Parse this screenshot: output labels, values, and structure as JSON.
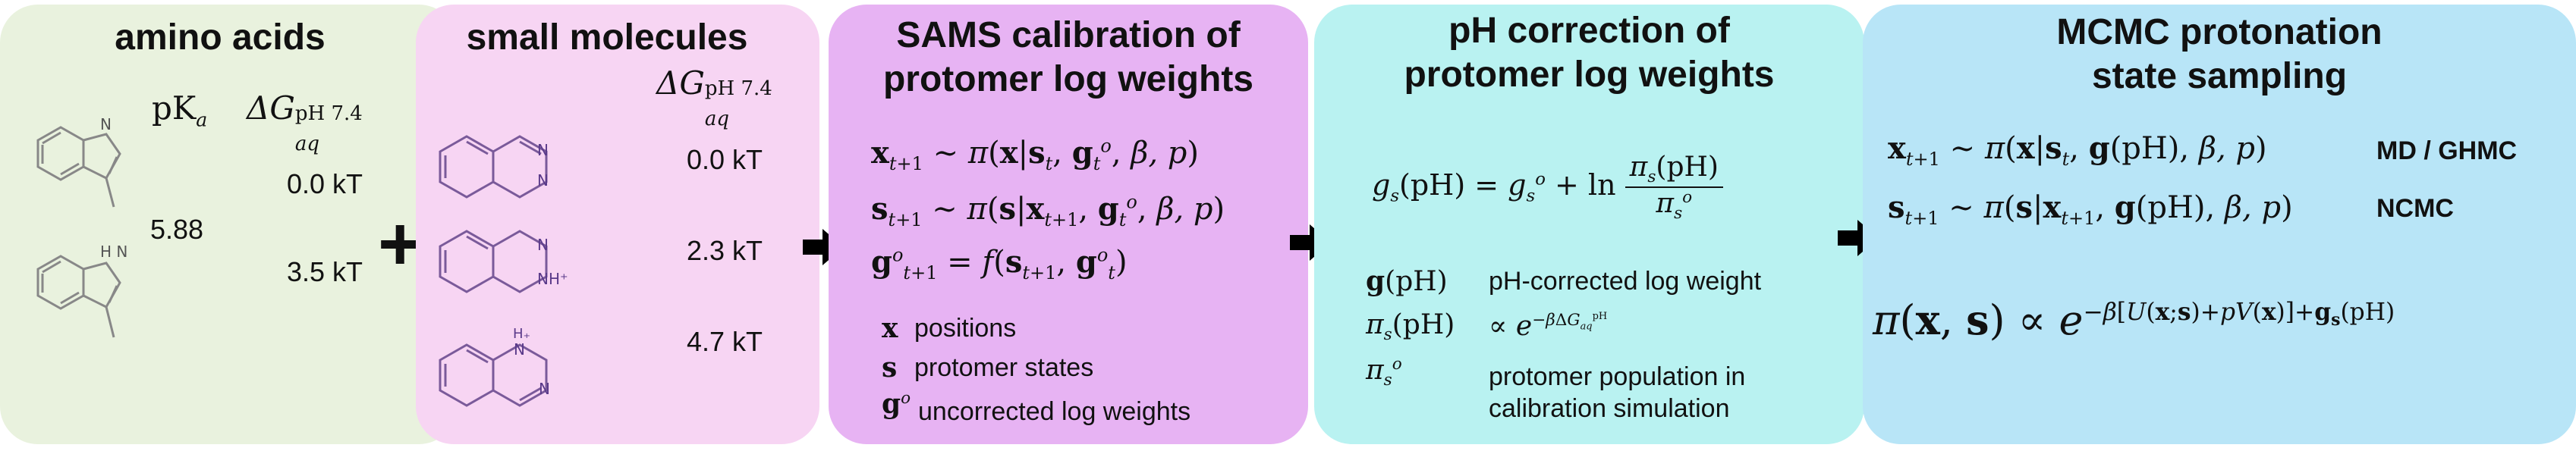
{
  "colors": {
    "amino_bg": "#e9f2de",
    "small_bg": "#f7d5f3",
    "sams_bg": "#e7b3f3",
    "ph_bg": "#b9f2f1",
    "mcmc_bg": "#b8e5f7",
    "molecule_stroke": "#888888"
  },
  "amino_acids": {
    "title": "amino acids",
    "col_pka": "pK",
    "col_pka_sub": "a",
    "col_dg": "ΔG",
    "col_dg_sup": "pH 7.4",
    "col_dg_sub": "aq",
    "pka_value": "5.88",
    "dg_values": [
      "0.0 kT",
      "3.5 kT"
    ]
  },
  "plus_sign": "+",
  "small_molecules": {
    "title": "small molecules",
    "col_dg": "ΔG",
    "col_dg_sup": "pH 7.4",
    "col_dg_sub": "aq",
    "dg_values": [
      "0.0 kT",
      "2.3 kT",
      "4.7 kT"
    ],
    "nh_labels": [
      "NH⁺",
      "H₊"
    ]
  },
  "sams": {
    "title_line1": "SAMS calibration of",
    "title_line2": "protomer log weights",
    "eq1": "x_{t+1} ∼ π(x|s_t, g_t^o, β, p)",
    "eq2": "s_{t+1} ∼ π(s|x_{t+1}, g_t^o, β, p)",
    "eq3": "g_{t+1}^o = f(s_{t+1}, g_t^o)",
    "legend": [
      {
        "symbol": "x",
        "text": "positions"
      },
      {
        "symbol": "s",
        "text": "protomer states"
      },
      {
        "symbol": "g",
        "text": "uncorrected log weights"
      }
    ]
  },
  "ph_correction": {
    "title_line1": "pH correction of",
    "title_line2": "protomer log weights",
    "eq_lhs": "g_s(pH) = g_s^o + ln",
    "eq_num": "π_s(pH)",
    "eq_den": "π_s^o",
    "legend": [
      {
        "symbol": "g(pH)",
        "text": "pH-corrected log weight"
      },
      {
        "symbol": "π_s(pH)",
        "text": "∝ e^{-βΔG_aq^pH}"
      },
      {
        "symbol": "π_s^o",
        "text": "protomer population in calibration simulation"
      }
    ],
    "legend_line_a": "protomer population in",
    "legend_line_b": "calibration simulation"
  },
  "mcmc": {
    "title_line1": "MCMC protonation",
    "title_line2": "state sampling",
    "eq1": "x_{t+1} ∼ π(x|s_t, g(pH), β, p)",
    "eq1_label": "MD / GHMC",
    "eq2": "s_{t+1} ∼ π(s|x_{t+1}, g(pH), β, p)",
    "eq2_label": "NCMC",
    "eq3": "π(x, s) ∝ e^{−β[U(x;s)+pV(x)]+g_s(pH)}"
  }
}
